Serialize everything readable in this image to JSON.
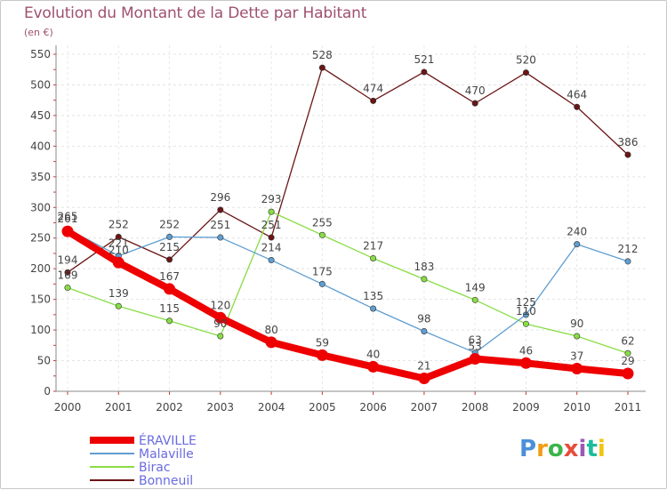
{
  "title": "Evolution du Montant de la Dette par Habitant",
  "subtitle": "(en €)",
  "logo": {
    "text": "Proxiti",
    "colors": [
      "#4a90d9",
      "#f39c12",
      "#3cb44b",
      "#e74c3c",
      "#9b59b6",
      "#1abc9c",
      "#f1c40f"
    ]
  },
  "chart_data": {
    "type": "line",
    "categories": [
      "2000",
      "2001",
      "2002",
      "2003",
      "2004",
      "2005",
      "2006",
      "2007",
      "2008",
      "2009",
      "2010",
      "2011"
    ],
    "ylim": [
      0,
      550
    ],
    "yticks": [
      0,
      50,
      100,
      150,
      200,
      250,
      300,
      350,
      400,
      450,
      500,
      550
    ],
    "grid": true,
    "legend_position": "bottom-left",
    "series": [
      {
        "name": "Bonneuil",
        "color": "#6b1515",
        "values": [
          194,
          252,
          215,
          296,
          251,
          528,
          474,
          521,
          470,
          520,
          464,
          386
        ]
      },
      {
        "name": "Birac",
        "color": "#88dd44",
        "values": [
          169,
          139,
          115,
          90,
          293,
          255,
          217,
          183,
          149,
          110,
          90,
          62
        ]
      },
      {
        "name": "Malaville",
        "color": "#5f9ed1",
        "values": [
          265,
          221,
          252,
          251,
          214,
          175,
          135,
          98,
          63,
          125,
          240,
          212
        ]
      },
      {
        "name": "ÉRAVILLE",
        "color": "#ee0000",
        "values": [
          261,
          210,
          167,
          120,
          80,
          59,
          40,
          21,
          53,
          46,
          37,
          29
        ]
      }
    ],
    "legend_order": [
      "ÉRAVILLE",
      "Malaville",
      "Birac",
      "Bonneuil"
    ]
  }
}
